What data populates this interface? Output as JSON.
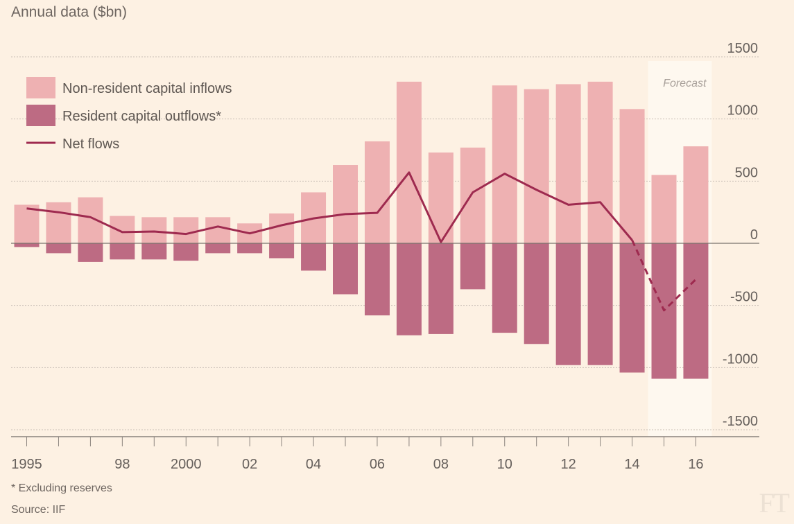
{
  "title": "Annual data ($bn)",
  "footnotes": {
    "note": "* Excluding reserves",
    "source": "Source: IIF"
  },
  "logo": "FT",
  "colors": {
    "background": "#fdf1e3",
    "inflows": "#eeb1b2",
    "outflows": "#bd6b83",
    "net": "#9e2a4f",
    "forecast_band": "#fef8ef",
    "grid": "#c9c0b6",
    "zero_line": "#7a736d"
  },
  "chart_data": {
    "type": "bar",
    "title": "Annual data ($bn)",
    "xlabel": "",
    "ylabel": "",
    "ylim": [
      -1500,
      1500
    ],
    "yticks": [
      1500,
      1000,
      500,
      0,
      -500,
      -1000,
      -1500
    ],
    "ytick_labels": [
      "1500",
      "1000",
      "500",
      "0",
      "-500",
      "-1000",
      "-1500"
    ],
    "years": [
      1995,
      1996,
      1997,
      1998,
      1999,
      2000,
      2001,
      2002,
      2003,
      2004,
      2005,
      2006,
      2007,
      2008,
      2009,
      2010,
      2011,
      2012,
      2013,
      2014,
      2015,
      2016
    ],
    "xtick_labels": [
      "1995",
      "",
      "",
      "98",
      "",
      "2000",
      "",
      "02",
      "",
      "04",
      "",
      "06",
      "",
      "08",
      "",
      "10",
      "",
      "12",
      "",
      "14",
      "",
      "16"
    ],
    "series": [
      {
        "name": "Non-resident capital inflows",
        "kind": "bar",
        "values": [
          310,
          330,
          370,
          220,
          210,
          210,
          210,
          160,
          240,
          410,
          630,
          820,
          1300,
          730,
          770,
          1270,
          1240,
          1280,
          1300,
          1080,
          550,
          780
        ]
      },
      {
        "name": "Resident capital outflows*",
        "kind": "bar",
        "values": [
          -30,
          -80,
          -150,
          -130,
          -130,
          -140,
          -80,
          -80,
          -120,
          -220,
          -410,
          -580,
          -740,
          -730,
          -370,
          -720,
          -810,
          -980,
          -980,
          -1040,
          -1090,
          -1090
        ]
      },
      {
        "name": "Net flows",
        "kind": "line",
        "values": [
          280,
          250,
          210,
          90,
          95,
          75,
          135,
          80,
          145,
          200,
          235,
          245,
          570,
          10,
          410,
          560,
          430,
          310,
          330,
          25,
          -540,
          -290
        ],
        "forecast_from_index": 20
      }
    ],
    "legend": [
      "Non-resident capital inflows",
      "Resident capital outflows*",
      "Net flows"
    ],
    "legend_position": "top-left",
    "annotations": [
      {
        "text": "Forecast",
        "applies_to": [
          2015,
          2016
        ]
      }
    ],
    "grid": true
  }
}
